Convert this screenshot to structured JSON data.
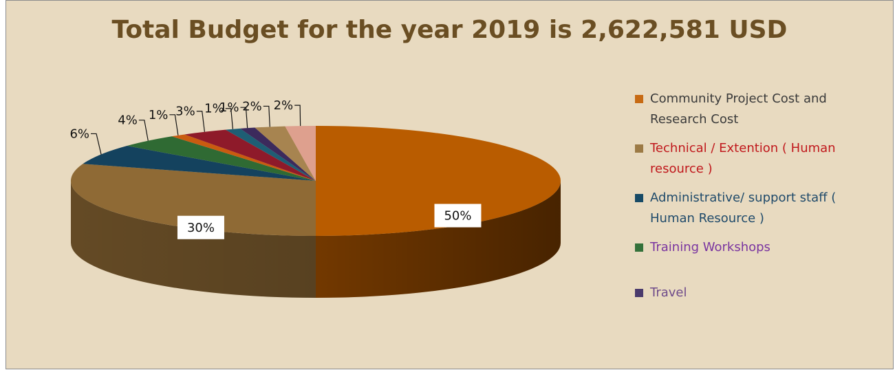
{
  "chart_data": {
    "type": "pie",
    "title": "Total Budget for the year 2019 is 2,622,581 USD",
    "legend_position": "right",
    "slices": [
      {
        "label": "Community Project Cost and Research Cost",
        "value": 50,
        "display": "50%",
        "color": "#b95c00",
        "legend_color": "#c76a13",
        "text_color": "#3a3a3a",
        "in_legend": true
      },
      {
        "label": "Technical / Extention ( Human resource )",
        "value": 30,
        "display": "30%",
        "color": "#8f6a35",
        "legend_color": "#9c7a45",
        "text_color": "#c0181c",
        "in_legend": true
      },
      {
        "label": "Administrative/ support staff ( Human Resource )",
        "value": 6,
        "display": "6%",
        "color": "#14425e",
        "legend_color": "#174a66",
        "text_color": "#1f4a6a",
        "in_legend": true
      },
      {
        "label": "Training Workshops",
        "value": 4,
        "display": "4%",
        "color": "#2f6a33",
        "legend_color": "#34713a",
        "text_color": "#7a35a0",
        "in_legend": true
      },
      {
        "label": "",
        "value": 1,
        "display": "1%",
        "color": "#c95b10",
        "in_legend": false
      },
      {
        "label": "",
        "value": 3,
        "display": "3%",
        "color": "#8e1a2a",
        "in_legend": false
      },
      {
        "label": "",
        "value": 1,
        "display": "1%",
        "color": "#1e5e74",
        "in_legend": false
      },
      {
        "label": "Travel",
        "value": 1,
        "display": "1%",
        "color": "#3c2a5c",
        "legend_color": "#4a3a6c",
        "text_color": "#6e4a8a",
        "in_legend": true
      },
      {
        "label": "",
        "value": 2,
        "display": "2%",
        "color": "#a78450",
        "in_legend": false
      },
      {
        "label": "",
        "value": 2,
        "display": "2%",
        "color": "#dea08e",
        "in_legend": false
      }
    ]
  }
}
